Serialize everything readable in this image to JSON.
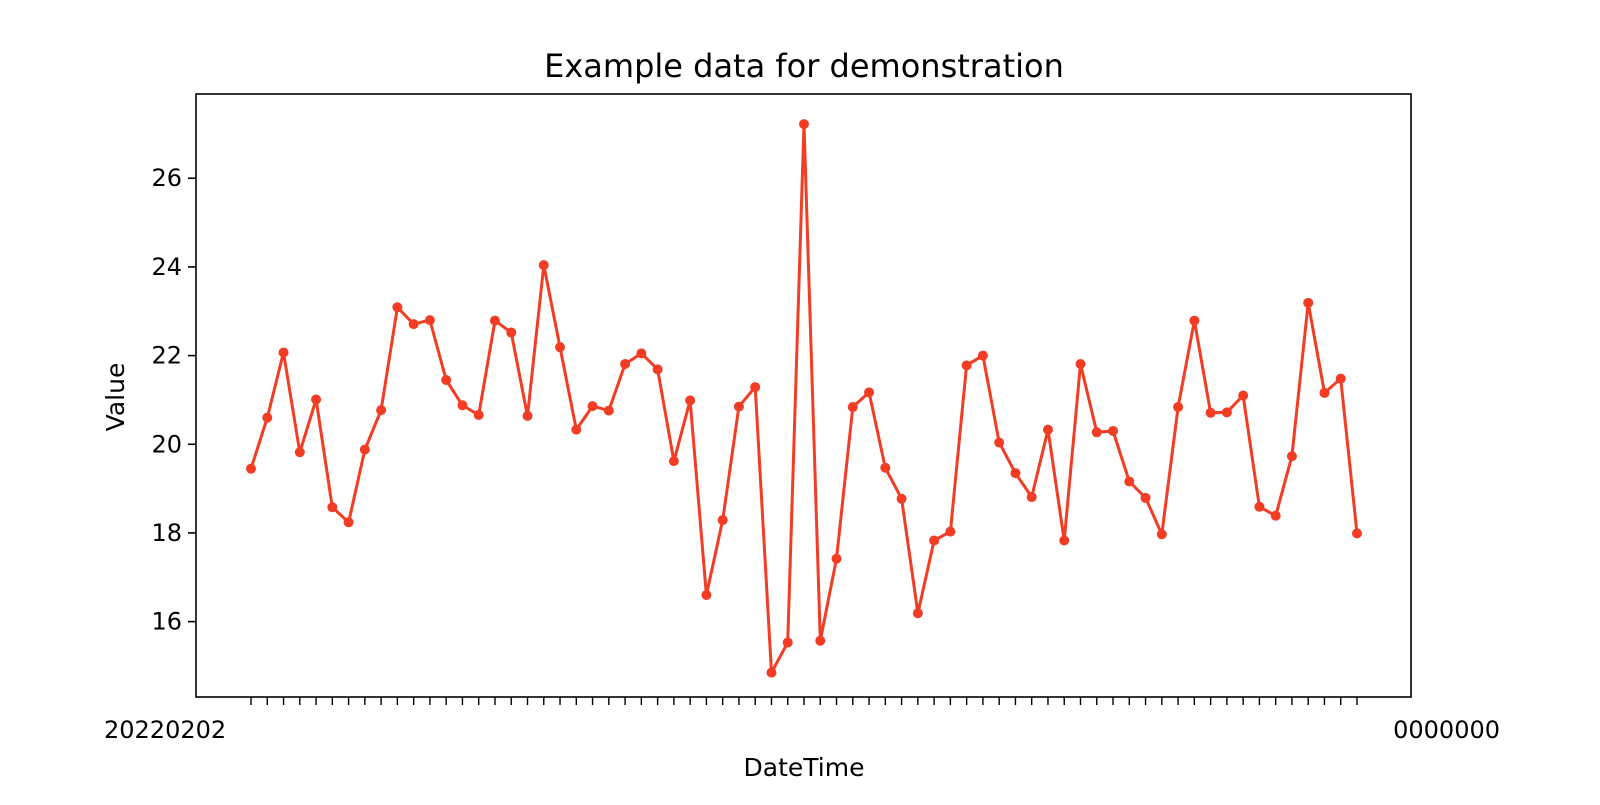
{
  "chart_data": {
    "type": "line",
    "title": "Example data for demonstration",
    "xlabel": "DateTime",
    "ylabel": "Value",
    "ylim": [
      14.3,
      27.9
    ],
    "yticks": [
      16,
      18,
      20,
      22,
      24,
      26
    ],
    "grid": false,
    "x_tick_note": "x tick labels overlap into an illegible run of datetime strings; left edge reads \"2022020…\" and right edge reads \"…0000000\"",
    "x_tick_label_left": "20220202",
    "x_tick_label_right": "0000000",
    "series": [
      {
        "color": "#f23c24",
        "values": [
          19.45,
          20.6,
          22.07,
          19.82,
          21.01,
          18.58,
          18.24,
          19.88,
          20.77,
          23.09,
          22.71,
          22.8,
          21.45,
          20.88,
          20.66,
          22.79,
          22.52,
          20.64,
          24.04,
          22.19,
          20.33,
          20.86,
          20.76,
          21.81,
          22.05,
          21.69,
          19.62,
          20.99,
          16.6,
          18.29,
          20.85,
          21.29,
          14.85,
          15.53,
          27.22,
          15.57,
          17.42,
          20.84,
          21.17,
          19.47,
          18.77,
          16.19,
          17.83,
          18.03,
          21.78,
          22.0,
          20.04,
          19.35,
          18.81,
          20.33,
          17.83,
          21.81,
          20.27,
          20.3,
          19.16,
          18.79,
          17.97,
          20.84,
          22.79,
          20.71,
          20.72,
          21.1,
          18.59,
          18.39,
          19.73,
          23.19,
          21.16,
          21.48,
          17.99
        ]
      }
    ]
  }
}
